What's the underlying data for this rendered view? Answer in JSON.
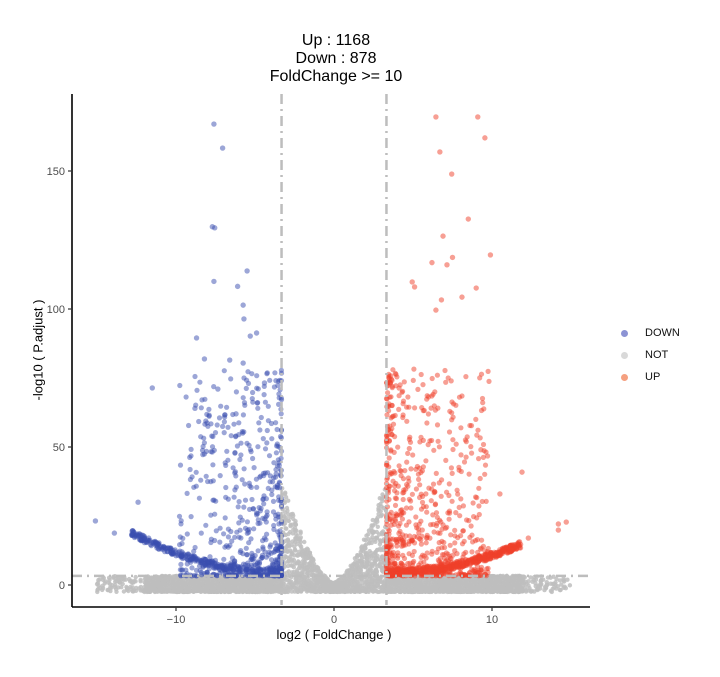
{
  "title": {
    "line1": "Up :  1168",
    "line2": "Down : 878",
    "line3": "FoldChange >= 10"
  },
  "axes": {
    "xlabel": "log2 ( FoldChange )",
    "ylabel": "-log10 ( P.adjust )",
    "xticks": [
      {
        "value": -10,
        "label": "−10"
      },
      {
        "value": 0,
        "label": "0"
      },
      {
        "value": 10,
        "label": "10"
      }
    ],
    "yticks": [
      {
        "value": 0,
        "label": "0"
      },
      {
        "value": 50,
        "label": "50"
      },
      {
        "value": 100,
        "label": "100"
      },
      {
        "value": 150,
        "label": "150"
      }
    ]
  },
  "legend": {
    "items": [
      {
        "label": "DOWN",
        "color": "#8c93d4"
      },
      {
        "label": "NOT",
        "color": "#d9d9d9"
      },
      {
        "label": "UP",
        "color": "#f5a080"
      }
    ]
  },
  "colors": {
    "down": "#3a4db0",
    "not": "#bebebe",
    "up": "#f0402a",
    "threshold": "#bdbdbd",
    "axis": "#000000",
    "tick_label": "#4d4d4d"
  },
  "chart_data": {
    "type": "scatter",
    "title": "Up :  1168 / Down : 878 / FoldChange >= 10",
    "xlabel": "log2 ( FoldChange )",
    "ylabel": "-log10 ( P.adjust )",
    "xlim": [
      -16.5,
      16.5
    ],
    "ylim": [
      -8,
      178
    ],
    "grid": false,
    "legend_position": "right",
    "thresholds": {
      "log2fc_vertical": [
        -3.32,
        3.32
      ],
      "neglog10p_horizontal": 3.3,
      "line_style": "dashed-dot"
    },
    "counts": {
      "UP": 1168,
      "DOWN": 878
    },
    "series": [
      {
        "name": "DOWN",
        "color": "#3a4db0",
        "count": 878,
        "highlighted_points": [
          [
            -7.6,
            167.0
          ],
          [
            -7.05,
            158.3
          ],
          [
            -7.7,
            129.8
          ],
          [
            -7.55,
            129.4
          ],
          [
            -5.5,
            113.8
          ],
          [
            -7.6,
            110.0
          ],
          [
            -6.1,
            108.2
          ],
          [
            -5.75,
            101.4
          ],
          [
            -5.7,
            96.4
          ],
          [
            -8.7,
            89.5
          ],
          [
            -4.9,
            91.3
          ],
          [
            -5.3,
            90.2
          ],
          [
            -8.2,
            81.9
          ],
          [
            -6.6,
            81.5
          ],
          [
            -5.75,
            80.4
          ],
          [
            -7.35,
            71.0
          ],
          [
            -4.4,
            73.2
          ],
          [
            -11.5,
            71.4
          ],
          [
            -15.1,
            23.2
          ],
          [
            -13.9,
            18.8
          ],
          [
            -12.4,
            30.0
          ],
          [
            -8.8,
            64.0
          ],
          [
            -7.9,
            61.5
          ],
          [
            -6.2,
            62.0
          ]
        ]
      },
      {
        "name": "NOT",
        "color": "#bebebe",
        "count_note": "non-significant genes clustered around log2FC in [-3.32, 3.32] and below the p threshold"
      },
      {
        "name": "UP",
        "color": "#f0402a",
        "count": 1168,
        "highlighted_points": [
          [
            6.45,
            169.6
          ],
          [
            9.1,
            169.6
          ],
          [
            9.55,
            162.0
          ],
          [
            6.7,
            156.9
          ],
          [
            7.45,
            148.9
          ],
          [
            8.5,
            132.6
          ],
          [
            6.9,
            126.4
          ],
          [
            9.9,
            119.6
          ],
          [
            7.5,
            118.7
          ],
          [
            6.2,
            116.8
          ],
          [
            7.15,
            116.0
          ],
          [
            4.95,
            109.8
          ],
          [
            5.1,
            108.0
          ],
          [
            9.0,
            107.6
          ],
          [
            8.1,
            104.3
          ],
          [
            6.8,
            103.3
          ],
          [
            6.45,
            99.6
          ],
          [
            11.9,
            40.9
          ],
          [
            14.2,
            22.1
          ],
          [
            14.7,
            22.8
          ],
          [
            14.2,
            19.9
          ],
          [
            9.3,
            49.0
          ],
          [
            10.5,
            33.0
          ],
          [
            12.3,
            17.0
          ]
        ]
      }
    ]
  }
}
